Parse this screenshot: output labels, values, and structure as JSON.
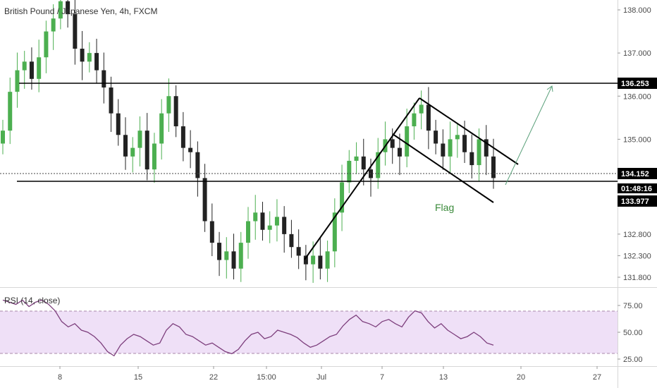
{
  "header": {
    "title": "British Pound / Japanese Yen, 4h, FXCM"
  },
  "chart_data": [
    {
      "type": "candlestick",
      "title": "British Pound / Japanese Yen, 4h, FXCM",
      "ylim": [
        131.6,
        138.2
      ],
      "price_ticks": [
        "138.000",
        "137.000",
        "136.000",
        "135.000",
        "132.800",
        "132.300",
        "131.800"
      ],
      "x_ticks": [
        "8",
        "15",
        "22",
        "15:00",
        "Jul",
        "7",
        "13",
        "20",
        "27"
      ],
      "series": [
        {
          "name": "",
          "close": [
            135.2,
            136.1,
            136.6,
            136.8,
            136.4,
            136.9,
            137.5,
            137.8,
            138.2,
            137.9,
            137.1,
            136.8,
            137.0,
            136.6,
            136.2,
            135.6,
            135.1,
            134.6,
            134.8,
            135.2,
            134.3,
            134.9,
            135.6,
            136.0,
            135.3,
            134.8,
            134.7,
            134.1,
            133.1,
            132.6,
            132.2,
            132.4,
            132.0,
            132.6,
            133.1,
            133.3,
            132.9,
            133.0,
            133.2,
            132.8,
            132.5,
            132.3,
            132.1,
            132.3,
            132.0,
            132.4,
            133.3,
            134.0,
            134.5,
            134.6,
            134.3,
            134.1,
            134.7,
            135.0,
            134.8,
            134.6,
            135.3,
            135.6,
            135.8,
            135.2,
            134.9,
            134.6,
            135.0,
            135.1,
            134.7,
            134.4,
            135.0,
            134.6,
            134.1
          ]
        }
      ],
      "levels": [
        {
          "label": "136.253",
          "value": 136.253,
          "color": "#000000"
        },
        {
          "label": "133.977",
          "value": 133.977,
          "color": "#000000"
        },
        {
          "label": "134.152",
          "value": 134.152,
          "color": "#000000"
        }
      ],
      "countdown": "01:48:16",
      "annotations": [
        {
          "label": "Flag",
          "color": "#3a8a3a"
        }
      ],
      "colors": {
        "up": "#4caf50",
        "down": "#222222",
        "line": "#000000",
        "projection": "#5aa07a"
      }
    },
    {
      "type": "line",
      "title": "RSI (14, close)",
      "ylim": [
        20,
        85
      ],
      "y_ticks": [
        "75.00",
        "50.00",
        "25.00"
      ],
      "band": [
        30,
        70
      ],
      "series": [
        {
          "name": "",
          "values": [
            80,
            78,
            76,
            80,
            74,
            78,
            80,
            76,
            70,
            60,
            55,
            58,
            52,
            50,
            46,
            40,
            32,
            28,
            38,
            44,
            48,
            46,
            42,
            38,
            40,
            52,
            58,
            55,
            48,
            46,
            42,
            38,
            40,
            36,
            32,
            30,
            34,
            42,
            48,
            50,
            44,
            46,
            52,
            50,
            48,
            45,
            40,
            36,
            38,
            42,
            46,
            48,
            56,
            62,
            66,
            60,
            58,
            55,
            60,
            62,
            58,
            55,
            64,
            70,
            68,
            60,
            54,
            58,
            52,
            48,
            44,
            46,
            50,
            46,
            40,
            38
          ]
        }
      ],
      "colors": {
        "line": "#7d3f7d",
        "band": "#eedcf5",
        "dash": "#a080a0"
      }
    }
  ]
}
